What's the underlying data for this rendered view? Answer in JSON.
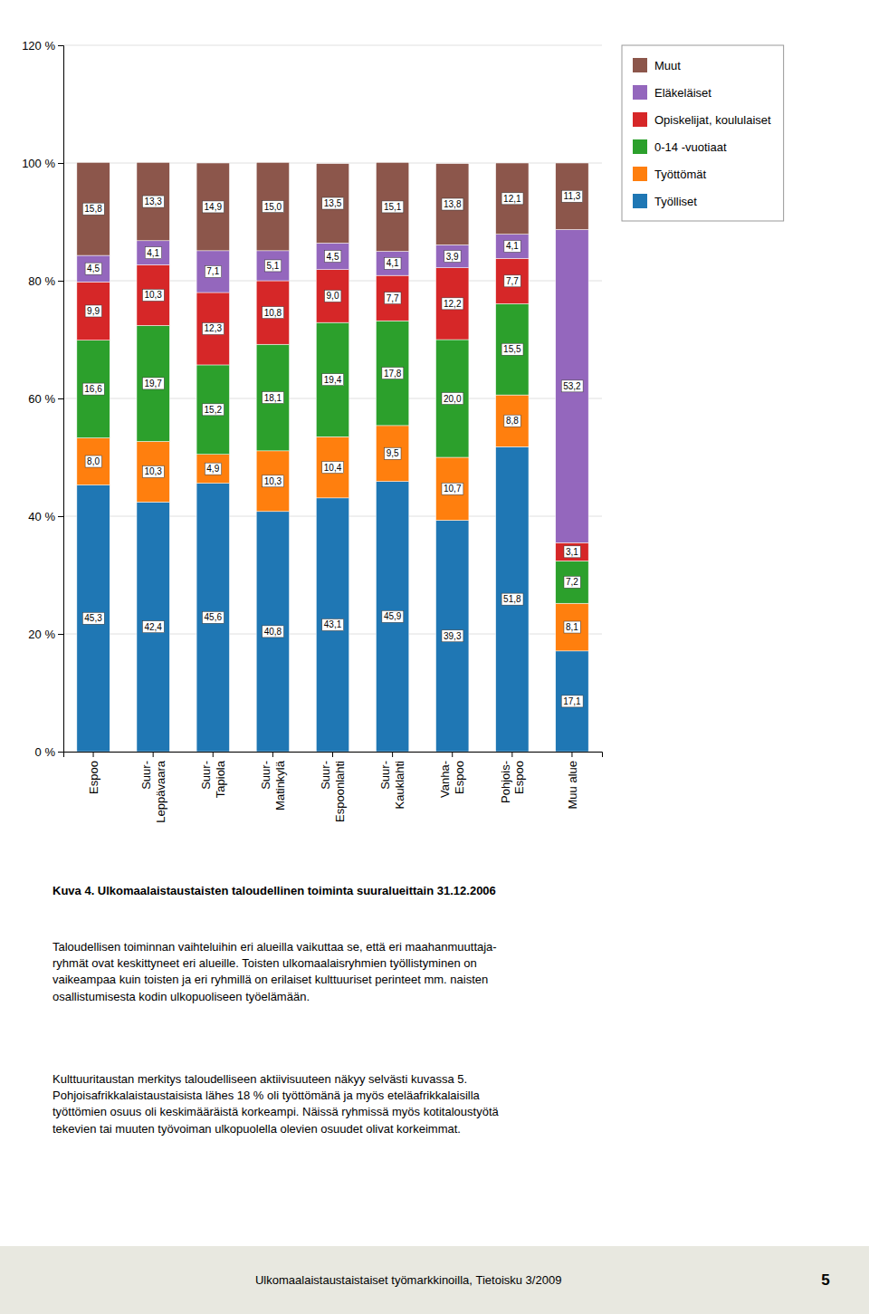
{
  "chart_data": {
    "type": "bar",
    "stacked": true,
    "title": "Kuva 4. Ulkomaalaistaustaisten taloudellinen toiminta suuralueittain 31.12.2006",
    "categories": [
      "Espoo",
      "Suur-\nLeppävaara",
      "Suur-\nTapiola",
      "Suur-\nMatinkylä",
      "Suur-\nEspoonlahti",
      "Suur-\nKauklahti",
      "Vanha-\nEspoo",
      "Pohjois-\nEspoo",
      "Muu alue"
    ],
    "series": [
      {
        "name": "Työlliset",
        "values": [
          45.3,
          42.4,
          45.6,
          40.8,
          43.1,
          45.9,
          39.3,
          51.8,
          17.1
        ],
        "value_labels": [
          "45,3",
          "42,4",
          "45,6",
          "40,8",
          "43,1",
          "45,9",
          "39,3",
          "51,8",
          "17,1"
        ]
      },
      {
        "name": "Työttömät",
        "values": [
          8.0,
          10.3,
          4.9,
          10.3,
          10.4,
          9.5,
          10.7,
          8.8,
          8.1
        ],
        "value_labels": [
          "8,0",
          "10,3",
          "4,9",
          "10,3",
          "10,4",
          "9,5",
          "10,7",
          "8,8",
          "8,1"
        ]
      },
      {
        "name": "0-14 -vuotiaat",
        "values": [
          16.6,
          19.7,
          15.2,
          18.1,
          19.4,
          17.8,
          20.0,
          15.5,
          7.2
        ],
        "value_labels": [
          "16,6",
          "19,7",
          "15,2",
          "18,1",
          "19,4",
          "17,8",
          "20,0",
          "15,5",
          "7,2"
        ]
      },
      {
        "name": "Opiskelijat, koululaiset",
        "values": [
          9.9,
          10.3,
          12.3,
          10.8,
          9.0,
          7.7,
          12.2,
          7.7,
          3.1
        ],
        "value_labels": [
          "9,9",
          "10,3",
          "12,3",
          "10,8",
          "9,0",
          "7,7",
          "12,2",
          "7,7",
          "3,1"
        ]
      },
      {
        "name": "Eläkeläiset",
        "values": [
          4.5,
          4.1,
          7.1,
          5.1,
          4.5,
          4.1,
          3.9,
          4.1,
          53.2
        ],
        "value_labels": [
          "4,5",
          "4,1",
          "7,1",
          "5,1",
          "4,5",
          "4,1",
          "3,9",
          "4,1",
          "53,2"
        ]
      },
      {
        "name": "Muut",
        "values": [
          15.8,
          13.3,
          14.9,
          15.0,
          13.5,
          15.1,
          13.8,
          12.1,
          11.3
        ],
        "value_labels": [
          "15,8",
          "13,3",
          "14,9",
          "15,0",
          "13,5",
          "15,1",
          "13,8",
          "12,1",
          "11,3"
        ]
      }
    ],
    "data_labels": true,
    "ylim": [
      0,
      120
    ],
    "yticks": [
      {
        "value": 0,
        "label": "0 %"
      },
      {
        "value": 20,
        "label": "20 %"
      },
      {
        "value": 40,
        "label": "40 %"
      },
      {
        "value": 60,
        "label": "60 %"
      },
      {
        "value": 80,
        "label": "80 %"
      },
      {
        "value": 100,
        "label": "100 %"
      },
      {
        "value": 120,
        "label": "120 %"
      }
    ],
    "grid": true,
    "legend": "right",
    "annotations": [
      "Taloudellisen toiminnan vaihteluihin eri alueilla vaikuttaa se, että eri maahanmuuttaja-\nryhmät ovat keskittyneet eri alueille. Toisten ulkomaalaisryhmien työllistyminen on\nvaikeampaa kuin toisten ja eri ryhmillä on erilaiset kulttuuriset perinteet mm. naisten\nosallistumisesta kodin ulkopuoliseen työelämään.",
      "Kulttuuritaustan merkitys taloudelliseen aktiivisuuteen näkyy selvästi kuvassa 5.\nPohjoisafrikkalaistaustaisista lähes 18 % oli työttömänä ja myös eteläafrikkalaisilla\ntyöttömien osuus oli keskimääräistä korkeampi. Näissä ryhmissä myös kotitaloustyötä\ntekevien tai muuten työvoiman ulkopuolella olevien osuudet olivat korkeimmat.",
      "Ulkomaalaistaustaistaiset työmarkkinoilla, Tietoisku 3/2009",
      "5"
    ]
  }
}
